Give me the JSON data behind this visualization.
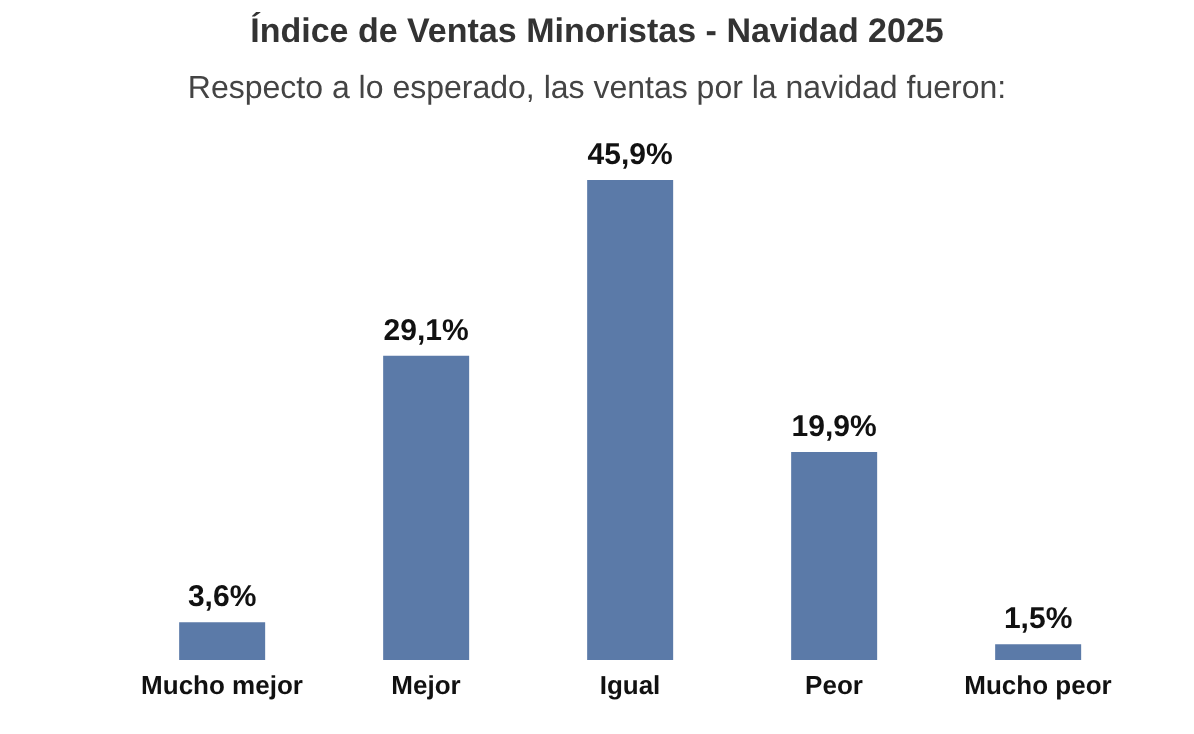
{
  "chart_data": {
    "type": "bar",
    "title": "Índice de Ventas Minoristas - Navidad 2025",
    "subtitle": "Respecto a lo esperado, las ventas por la navidad fueron:",
    "categories": [
      "Mucho mejor",
      "Mejor",
      "Igual",
      "Peor",
      "Mucho peor"
    ],
    "values": [
      3.6,
      29.1,
      45.9,
      19.9,
      1.5
    ],
    "value_labels": [
      "3,6%",
      "29,1%",
      "45,9%",
      "19,9%",
      "1,5%"
    ],
    "color": "#5b7aa8",
    "grid": false,
    "legend": false
  }
}
